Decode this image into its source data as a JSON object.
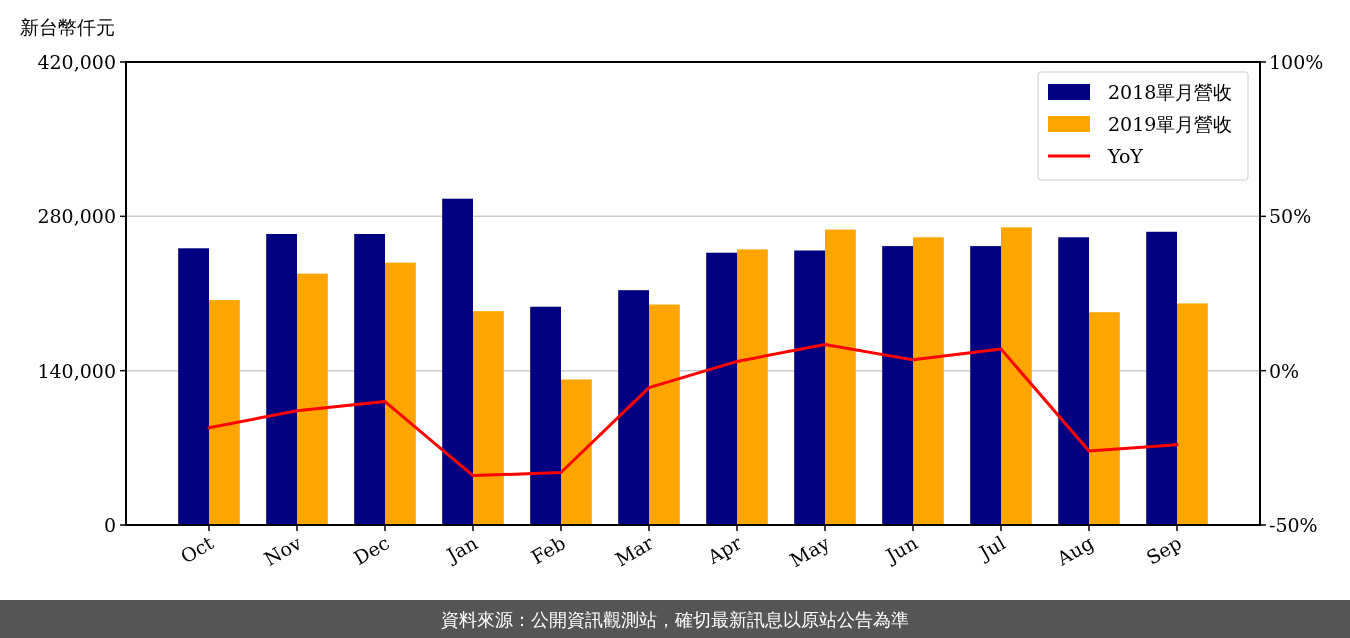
{
  "chart_data": {
    "type": "bar",
    "ylabel": "新台幣仟元",
    "categories": [
      "Oct",
      "Nov",
      "Dec",
      "Jan",
      "Feb",
      "Mar",
      "Apr",
      "May",
      "Jun",
      "Jul",
      "Aug",
      "Sep"
    ],
    "series": [
      {
        "name": "2018單月營收",
        "color": "#000080",
        "values": [
          251000,
          264000,
          264000,
          296000,
          198000,
          213000,
          247000,
          249000,
          253000,
          253000,
          261000,
          266000
        ]
      },
      {
        "name": "2019單月營收",
        "color": "#ffa500",
        "values": [
          204000,
          228000,
          238000,
          194000,
          132000,
          200000,
          250000,
          268000,
          261000,
          270000,
          193000,
          201000
        ]
      },
      {
        "name": "YoY",
        "type": "line",
        "axis": "y2",
        "color": "#ff0000",
        "values": [
          -18.5,
          -13,
          -10,
          -34,
          -33,
          -5.5,
          3,
          8.5,
          3.5,
          7,
          -26,
          -24
        ]
      }
    ],
    "ylim": [
      0,
      420000
    ],
    "yticks": [
      {
        "value": 0,
        "label": "0"
      },
      {
        "value": 140000,
        "label": "140,000"
      },
      {
        "value": 280000,
        "label": "280,000"
      },
      {
        "value": 420000,
        "label": "420,000"
      }
    ],
    "y2lim": [
      -50,
      100
    ],
    "y2ticks": [
      {
        "value": -50,
        "label": "-50%"
      },
      {
        "value": 0,
        "label": "0%"
      },
      {
        "value": 50,
        "label": "50%"
      },
      {
        "value": 100,
        "label": "100%"
      }
    ],
    "grid": "y",
    "legend": "top right",
    "annotations": [
      "資料來源：公開資訊觀測站，確切最新訊息以原站公告為準"
    ]
  }
}
